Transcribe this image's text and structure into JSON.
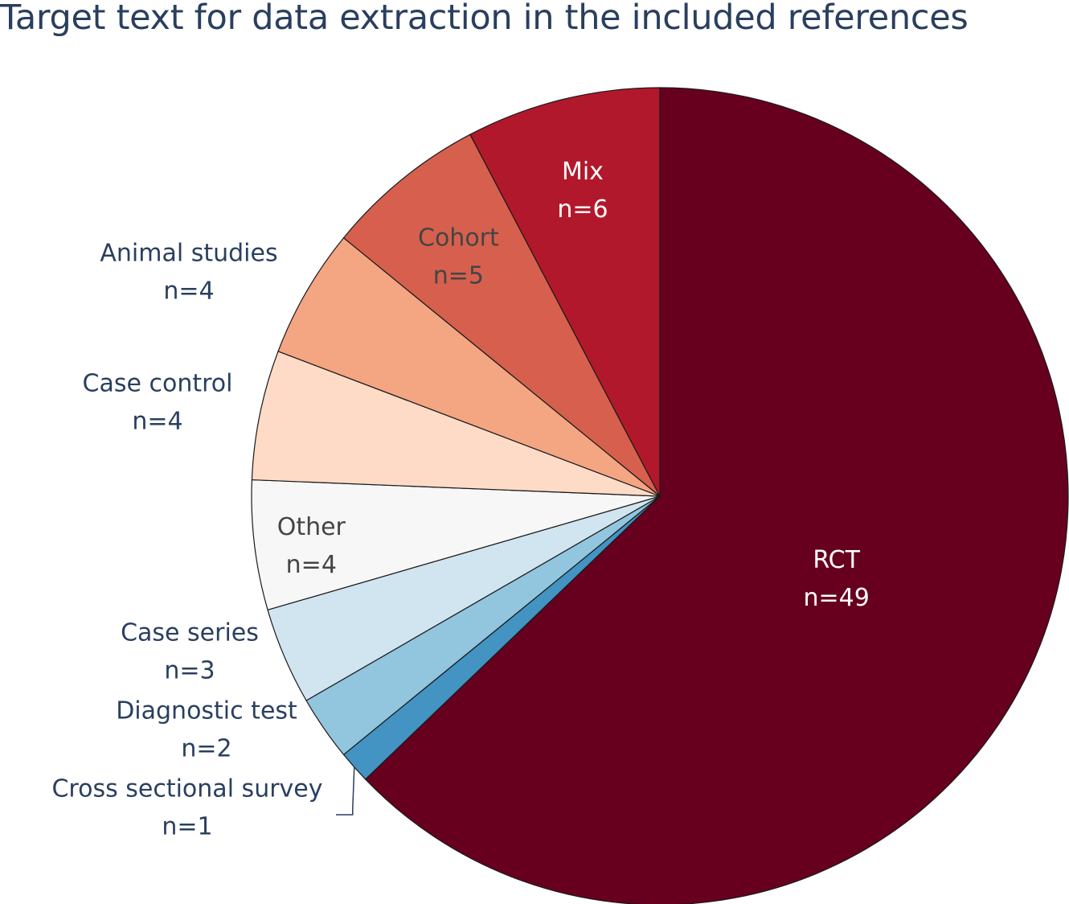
{
  "chart_data": {
    "type": "pie",
    "title": "Target text for data extraction in the included references",
    "slices": [
      {
        "label": "RCT",
        "count": "n=49",
        "value": 49,
        "color": "#67001f",
        "label_color": "#ffffff"
      },
      {
        "label": "Cross sectional survey",
        "count": "n=1",
        "value": 1,
        "color": "#4393c3",
        "label_color": "#2a3f5f"
      },
      {
        "label": "Diagnostic test",
        "count": "n=2",
        "value": 2,
        "color": "#92c5de",
        "label_color": "#2a3f5f"
      },
      {
        "label": "Case series",
        "count": "n=3",
        "value": 3,
        "color": "#d1e5f0",
        "label_color": "#2a3f5f"
      },
      {
        "label": "Other",
        "count": "n=4",
        "value": 4,
        "color": "#f7f7f7",
        "label_color": "#444444"
      },
      {
        "label": "Case control",
        "count": "n=4",
        "value": 4,
        "color": "#fddbc7",
        "label_color": "#2a3f5f"
      },
      {
        "label": "Animal studies",
        "count": "n=4",
        "value": 4,
        "color": "#f4a582",
        "label_color": "#2a3f5f"
      },
      {
        "label": "Cohort",
        "count": "n=5",
        "value": 5,
        "color": "#d6604d",
        "label_color": "#444444"
      },
      {
        "label": "Mix",
        "count": "n=6",
        "value": 6,
        "color": "#b2182b",
        "label_color": "#ffffff"
      }
    ],
    "legend": "none",
    "title_color": "#2a3f5f"
  }
}
